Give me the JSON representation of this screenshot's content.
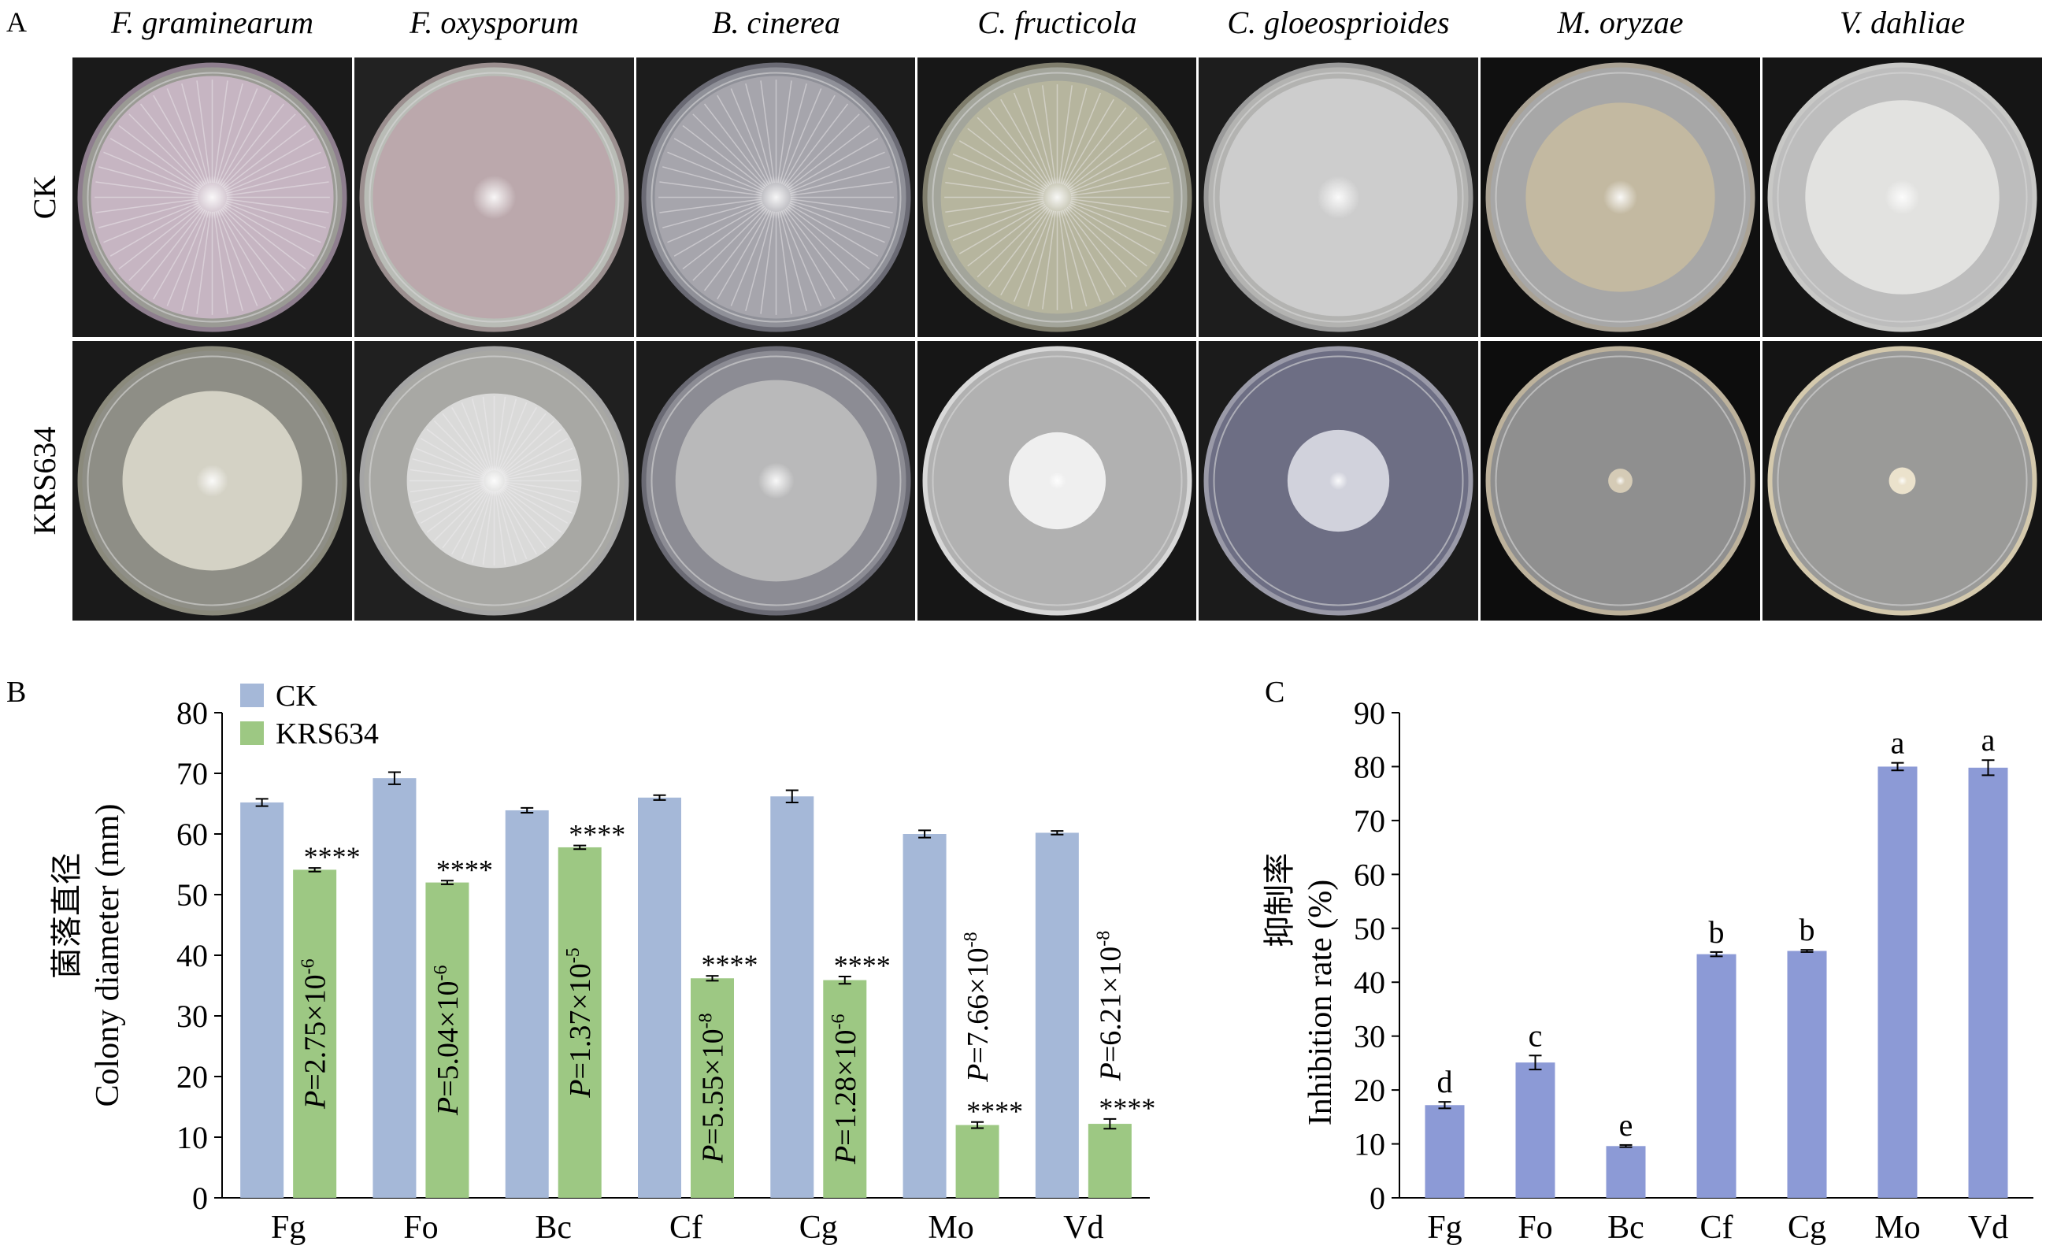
{
  "panel_a": {
    "label": "A",
    "species": [
      "F. graminearum",
      "F. oxysporum",
      "B. cinerea",
      "C. fructicola",
      "C. gloeosprioides",
      "M. oryzae",
      "V. dahliae"
    ],
    "rows": [
      "CK",
      "KRS634"
    ],
    "plates": {
      "CK": [
        {
          "color": "#c8b6c4",
          "rim": "#8e7e8e",
          "colony": 1.0,
          "radial": true
        },
        {
          "color": "#bba7ac",
          "rim": "#9b8f8f",
          "colony": 1.0,
          "radial": false
        },
        {
          "color": "#a8a7ad",
          "rim": "#6a6a74",
          "colony": 1.0,
          "radial": true
        },
        {
          "color": "#b7b59e",
          "rim": "#7f7d6c",
          "colony": 0.96,
          "radial": true
        },
        {
          "color": "#cfcfcf",
          "rim": "#9a9a9a",
          "colony": 0.98,
          "radial": false
        },
        {
          "color": "#c4b9a0",
          "rim": "#aaa294",
          "colony": 0.78,
          "radial": false
        },
        {
          "color": "#e4e4e2",
          "rim": "#c8c8c6",
          "colony": 0.8,
          "radial": false
        }
      ],
      "KRS634": [
        {
          "color": "#d8d6c8",
          "rim": "#8b8a7c",
          "colony": 0.74,
          "radial": false
        },
        {
          "color": "#dcdcdc",
          "rim": "#a5a5a5",
          "colony": 0.72,
          "radial": true
        },
        {
          "color": "#bcbcbc",
          "rim": "#6a6a74",
          "colony": 0.83,
          "radial": false
        },
        {
          "color": "#f2f2f2",
          "rim": "#d8d8d8",
          "colony": 0.4,
          "radial": false
        },
        {
          "color": "#d7d7e0",
          "rim": "#9a9aa8",
          "colony": 0.42,
          "radial": false
        },
        {
          "color": "#d9cfb8",
          "rim": "#bdb29c",
          "colony": 0.1,
          "radial": false
        },
        {
          "color": "#efe6cf",
          "rim": "#d4c9ad",
          "colony": 0.11,
          "radial": false
        }
      ]
    },
    "bg_colors": {
      "CK": [
        "#1a1a1a",
        "#222",
        "#1c1c1c",
        "#171717",
        "#1d1d1d",
        "#101010",
        "#151515"
      ],
      "KRS634": [
        "#1a1a1a",
        "#202020",
        "#1c1c1c",
        "#161616",
        "#1b1b1b",
        "#0d0d0d",
        "#141414"
      ]
    },
    "dish_fill": {
      "CK": [
        "#9a9a94",
        "#b9bcb6",
        "#8f9098",
        "#a3a59b",
        "#b3b3b1",
        "#a7a7a7",
        "#bdbdbd"
      ],
      "KRS634": [
        "#8e8e86",
        "#a8a8a4",
        "#8c8c94",
        "#b1b1b1",
        "#6d6e84",
        "#8f8f8f",
        "#9a9a98"
      ]
    }
  },
  "chart_data": [
    {
      "panel": "B",
      "type": "bar",
      "title": "",
      "categories": [
        "Fg",
        "Fo",
        "Bc",
        "Cf",
        "Cg",
        "Mo",
        "Vd"
      ],
      "series": [
        {
          "name": "CK",
          "color": "#a5b8d8",
          "values": [
            65.2,
            69.2,
            63.9,
            66.0,
            66.2,
            60.0,
            60.2
          ],
          "errors": [
            0.6,
            1.0,
            0.4,
            0.4,
            1.0,
            0.6,
            0.3
          ]
        },
        {
          "name": "KRS634",
          "color": "#9dc883",
          "values": [
            54.1,
            52.0,
            57.8,
            36.2,
            35.9,
            12.0,
            12.2
          ],
          "errors": [
            0.3,
            0.3,
            0.3,
            0.4,
            0.6,
            0.5,
            0.8
          ]
        }
      ],
      "significance": [
        "****",
        "****",
        "****",
        "****",
        "****",
        "****",
        "****"
      ],
      "p_values": [
        "P=2.75×10",
        "P=5.04×10",
        "P=1.37×10",
        "P=5.55×10",
        "P=1.28×10",
        "P=7.66×10",
        "P=6.21×10"
      ],
      "p_exponents": [
        "-6",
        "-6",
        "-5",
        "-8",
        "-6",
        "-8",
        "-8"
      ],
      "ylabel": "Colony diameter (mm)",
      "ylabel_cn": "菌落直径",
      "yticks": [
        0,
        10,
        20,
        30,
        40,
        50,
        60,
        70,
        80
      ],
      "ylim": [
        0,
        80
      ],
      "legend": "top-left"
    },
    {
      "panel": "C",
      "type": "bar",
      "title": "",
      "categories": [
        "Fg",
        "Fo",
        "Bc",
        "Cf",
        "Cg",
        "Mo",
        "Vd"
      ],
      "values": [
        17.2,
        25.1,
        9.6,
        45.2,
        45.8,
        80.0,
        79.8
      ],
      "errors": [
        0.6,
        1.3,
        0.2,
        0.4,
        0.2,
        0.7,
        1.4
      ],
      "letters": [
        "d",
        "c",
        "e",
        "b",
        "b",
        "a",
        "a"
      ],
      "color": "#8c9ad6",
      "ylabel": "Inhibition rate (%)",
      "ylabel_cn": "抑制率",
      "yticks": [
        0,
        10,
        20,
        30,
        40,
        50,
        60,
        70,
        80,
        90
      ],
      "ylim": [
        0,
        90
      ]
    }
  ],
  "labels": {
    "panel_b": "B",
    "panel_c": "C"
  }
}
